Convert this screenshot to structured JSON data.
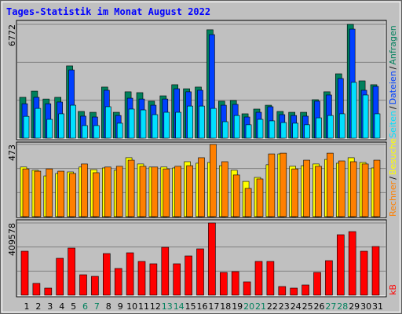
{
  "chart_data": [
    {
      "type": "bar",
      "title": "Tages-Statistik im Monat August 2022",
      "ylim": [
        0,
        6772
      ],
      "yticks": [
        6772
      ],
      "separator": "/",
      "series": [
        {
          "name": "Anfragen",
          "color": "#00805c",
          "values": [
            2430,
            2800,
            2330,
            2430,
            4300,
            1590,
            1540,
            3040,
            1540,
            2760,
            2710,
            2200,
            2520,
            3180,
            2940,
            3040,
            6450,
            2200,
            2240,
            1450,
            1730,
            1960,
            1590,
            1540,
            1540,
            2290,
            2760,
            3830,
            6772,
            3410,
            3180
          ]
        },
        {
          "name": "Dateien",
          "color": "#0040ff",
          "values": [
            2050,
            2430,
            2050,
            2150,
            4060,
            1310,
            1260,
            2850,
            1350,
            2380,
            2330,
            1960,
            2330,
            2940,
            2760,
            2850,
            6160,
            1960,
            2010,
            1260,
            1540,
            1870,
            1400,
            1350,
            1310,
            2200,
            2570,
            3550,
            6490,
            2850,
            3080
          ]
        },
        {
          "name": "Seiten",
          "color": "#00e0ff",
          "values": [
            1300,
            1770,
            1120,
            1450,
            1960,
            750,
            750,
            1870,
            890,
            1730,
            1680,
            1400,
            1540,
            1540,
            1910,
            1910,
            1770,
            980,
            1350,
            800,
            1120,
            1030,
            930,
            890,
            800,
            1210,
            1350,
            1450,
            3320,
            2570,
            1450
          ]
        }
      ]
    },
    {
      "type": "bar",
      "ylim": [
        0,
        473
      ],
      "yticks": [
        473
      ],
      "separator": "/",
      "series": [
        {
          "name": "Besuche",
          "color": "#ffff00",
          "values": [
            325,
            304,
            267,
            283,
            293,
            325,
            308,
            319,
            304,
            386,
            345,
            325,
            325,
            319,
            360,
            350,
            355,
            334,
            304,
            231,
            257,
            340,
            411,
            330,
            334,
            345,
            375,
            350,
            386,
            355,
            319
          ]
        },
        {
          "name": "Rechner",
          "color": "#ff8000",
          "values": [
            313,
            298,
            313,
            298,
            283,
            345,
            288,
            325,
            330,
            370,
            330,
            325,
            313,
            330,
            334,
            386,
            473,
            360,
            273,
            185,
            247,
            411,
            416,
            313,
            370,
            330,
            416,
            365,
            360,
            345,
            370
          ]
        }
      ]
    },
    {
      "type": "bar",
      "ylim": [
        0,
        409578
      ],
      "yticks": [
        409578
      ],
      "categories": [
        "1",
        "2",
        "3",
        "4",
        "5",
        "6",
        "7",
        "8",
        "9",
        "10",
        "11",
        "12",
        "13",
        "14",
        "15",
        "16",
        "17",
        "18",
        "19",
        "20",
        "21",
        "22",
        "23",
        "24",
        "25",
        "26",
        "27",
        "28",
        "29",
        "30",
        "31"
      ],
      "label_colors": [
        "#000000",
        "#000000",
        "#000000",
        "#000000",
        "#000000",
        "#00805c",
        "#00805c",
        "#000000",
        "#000000",
        "#000000",
        "#000000",
        "#000000",
        "#00805c",
        "#00805c",
        "#000000",
        "#000000",
        "#000000",
        "#000000",
        "#000000",
        "#00805c",
        "#00805c",
        "#000000",
        "#000000",
        "#000000",
        "#000000",
        "#000000",
        "#00805c",
        "#00805c",
        "#000000",
        "#000000",
        "#000000"
      ],
      "series": [
        {
          "name": "kB",
          "color": "#ff0000",
          "values": [
            249300,
            66800,
            40100,
            209200,
            267100,
            115700,
            106800,
            236000,
            151400,
            240400,
            191400,
            178100,
            271600,
            178100,
            222600,
            262700,
            409578,
            129100,
            133600,
            75700,
            191400,
            191400,
            49000,
            40100,
            57900,
            129100,
            195900,
            342800,
            360600,
            249300,
            276000
          ]
        }
      ]
    }
  ]
}
